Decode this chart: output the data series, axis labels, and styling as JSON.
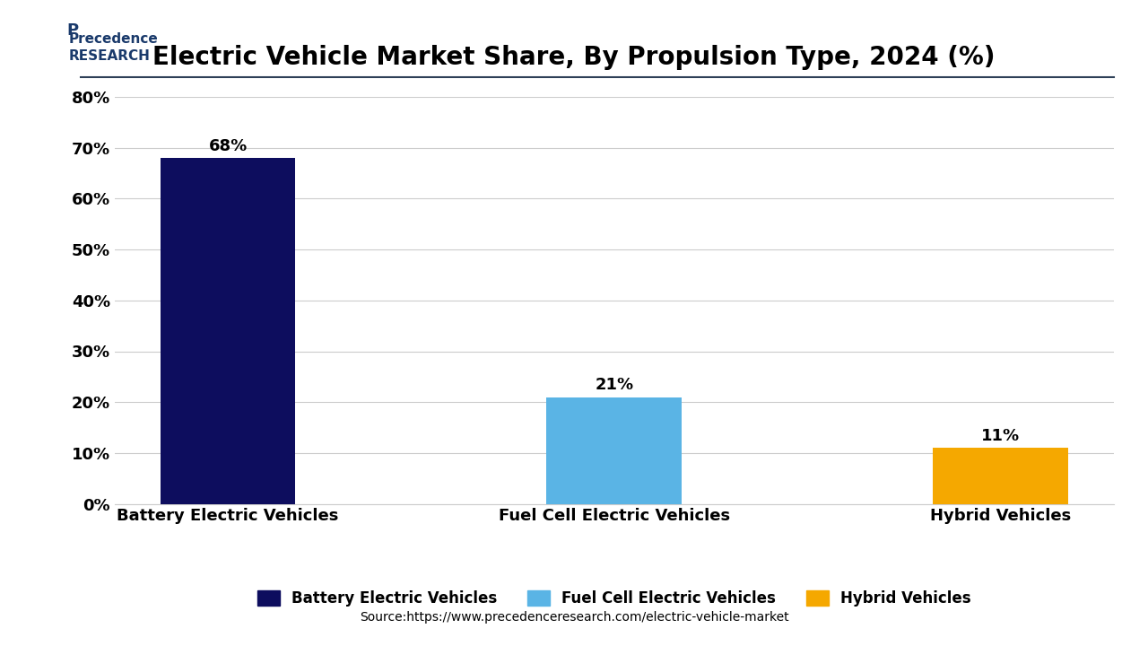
{
  "title": "Electric Vehicle Market Share, By Propulsion Type, 2024 (%)",
  "categories": [
    "Battery Electric Vehicles",
    "Fuel Cell Electric Vehicles",
    "Hybrid Vehicles"
  ],
  "values": [
    68,
    21,
    11
  ],
  "labels": [
    "68%",
    "21%",
    "11%"
  ],
  "bar_colors": [
    "#0d0d5e",
    "#5ab4e5",
    "#f5a800"
  ],
  "ylim": [
    0,
    80
  ],
  "yticks": [
    0,
    10,
    20,
    30,
    40,
    50,
    60,
    70,
    80
  ],
  "ytick_labels": [
    "0%",
    "10%",
    "20%",
    "30%",
    "40%",
    "50%",
    "60%",
    "70%",
    "80%"
  ],
  "background_color": "#ffffff",
  "source_text": "Source:https://www.precedenceresearch.com/electric-vehicle-market",
  "title_fontsize": 20,
  "label_fontsize": 13,
  "tick_fontsize": 13,
  "legend_fontsize": 12,
  "source_fontsize": 10,
  "grid_color": "#cccccc",
  "top_line_color": "#2e4057",
  "bar_width": 0.35
}
